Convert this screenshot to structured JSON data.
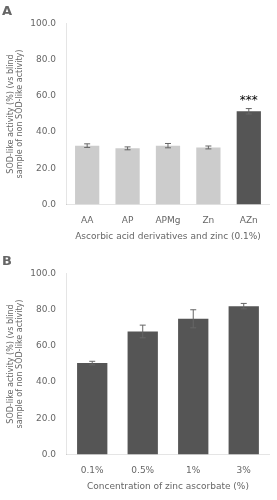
{
  "chart_data": [
    {
      "type": "bar",
      "title": "A",
      "categories": [
        "AA",
        "AP",
        "APMg",
        "Zn",
        "AZn"
      ],
      "values": [
        32.5,
        31.0,
        32.5,
        31.5,
        51.5
      ],
      "errors": [
        1.0,
        0.8,
        1.2,
        0.8,
        1.5
      ],
      "colors": [
        "#cccccc",
        "#cccccc",
        "#cccccc",
        "#cccccc",
        "#555555"
      ],
      "xlabel": "Ascorbic acid derivatives and zinc (0.1%)",
      "ylabel": "SOD-like activity (%) (vs blind\nsample of non SOD-like activity)",
      "ylim": [
        0,
        100
      ],
      "yticks": [
        {
          "value": 0,
          "label": "0.0"
        },
        {
          "value": 20,
          "label": "20.0"
        },
        {
          "value": 40,
          "label": "40.0"
        },
        {
          "value": 60,
          "label": "60.0"
        },
        {
          "value": 80,
          "label": "80.0"
        },
        {
          "value": 100,
          "label": "100.0"
        }
      ],
      "grid": false,
      "annotations": [
        {
          "text": "***",
          "category": "AZn"
        }
      ]
    },
    {
      "type": "bar",
      "title": "B",
      "categories": [
        "0.1%",
        "0.5%",
        "1%",
        "3%"
      ],
      "values": [
        50.5,
        68.0,
        75.0,
        82.0
      ],
      "errors": [
        1.0,
        3.5,
        5.0,
        1.5
      ],
      "color": "#555555",
      "xlabel": "Concentration of zinc ascorbate (%)",
      "ylabel": "SOD-like activity (%) (vs blind\nsample of non SOD-like activity)",
      "ylim": [
        0,
        100
      ],
      "yticks": [
        {
          "value": 0,
          "label": "0.0"
        },
        {
          "value": 20,
          "label": "20.0"
        },
        {
          "value": 40,
          "label": "40.0"
        },
        {
          "value": 60,
          "label": "60.0"
        },
        {
          "value": 80,
          "label": "80.0"
        },
        {
          "value": 100,
          "label": "100.0"
        }
      ],
      "grid": false
    }
  ]
}
